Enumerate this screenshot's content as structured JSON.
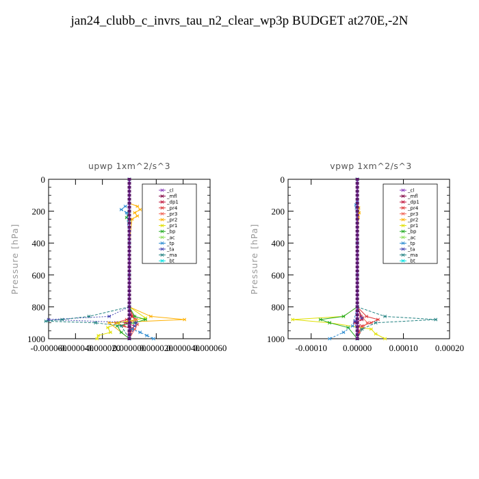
{
  "title": "jan24_clubb_c_invrs_tau_n2_clear_wp3p  BUDGET at270E,-2N",
  "legend_colors": {
    "_cl": "#8a3ab9",
    "_mfl": "#800040",
    "_dp1": "#c0143c",
    "_pr4": "#dd3a3a",
    "_pr3": "#f06050",
    "_pr2": "#ffb000",
    "_pr1": "#e0e000",
    "_bp": "#22aa22",
    "_ac": "#90e060",
    "_tp": "#2a8ad0",
    "_ta": "#4040b0",
    "_ma": "#208080",
    "_bt": "#00e0e0"
  },
  "chart_data": [
    {
      "type": "line",
      "title": "upwp   1xm^2/s^3",
      "ylabel": "Pressure [hPa]",
      "ylim": [
        1000,
        0
      ],
      "xlim": [
        -6e-05,
        6e-05
      ],
      "yticks": [
        "0",
        "200",
        "400",
        "600",
        "800",
        "1000"
      ],
      "xticks": [
        "-0.000060",
        "-0.000040",
        "-0.000020",
        "0.000000",
        "0.000020",
        "0.000040",
        "0.000060"
      ],
      "legend": [
        "_cl",
        "_mfl",
        "_dp1",
        "_pr4",
        "_pr3",
        "_pr2",
        "_pr1",
        "_bp",
        "_ac",
        "_tp",
        "_ta",
        "_ma",
        "_bt"
      ],
      "series": [
        {
          "name": "_cl",
          "y": [
            0,
            200,
            400,
            600,
            800,
            880,
            920,
            1000
          ],
          "x": [
            0,
            0,
            0,
            0,
            0,
            0,
            0,
            0
          ]
        },
        {
          "name": "_mfl",
          "y": [
            0,
            200,
            400,
            600,
            800,
            880,
            920,
            1000
          ],
          "x": [
            0,
            0,
            0,
            0,
            0,
            0,
            0,
            0
          ]
        },
        {
          "name": "_dp1",
          "y": [
            0,
            800,
            860,
            880,
            900,
            920,
            940,
            960,
            1000
          ],
          "x": [
            0,
            0,
            2e-06,
            5e-06,
            -3e-06,
            4e-06,
            1e-06,
            0,
            0
          ]
        },
        {
          "name": "_pr4",
          "y": [
            0,
            800,
            860,
            880,
            900,
            920,
            940,
            1000
          ],
          "x": [
            0,
            0,
            3e-06,
            -2e-06,
            -1e-05,
            -4e-06,
            2e-06,
            0
          ]
        },
        {
          "name": "_pr3",
          "y": [
            0,
            800,
            880,
            910,
            940,
            1000
          ],
          "x": [
            0,
            0,
            4e-06,
            6e-06,
            4e-06,
            0
          ]
        },
        {
          "name": "_pr2",
          "y": [
            0,
            150,
            170,
            190,
            210,
            230,
            250,
            400,
            800,
            860,
            880,
            900,
            1000
          ],
          "x": [
            0,
            0,
            6e-06,
            8e-06,
            4e-06,
            6e-06,
            2e-06,
            0,
            0,
            1.6e-05,
            4.1e-05,
            -1.5e-05,
            0
          ]
        },
        {
          "name": "_pr1",
          "y": [
            0,
            800,
            870,
            900,
            930,
            960,
            980,
            1000
          ],
          "x": [
            0,
            0,
            1.2e-05,
            -8e-06,
            -1.6e-05,
            -1.4e-05,
            -2.3e-05,
            -2.4e-05
          ]
        },
        {
          "name": "_bp",
          "y": [
            0,
            200,
            240,
            260,
            800,
            860,
            880,
            900,
            920,
            960,
            1000
          ],
          "x": [
            0,
            0,
            -2e-06,
            0,
            0,
            4e-06,
            1.2e-05,
            4e-06,
            -9e-06,
            -6e-06,
            0
          ]
        },
        {
          "name": "_ac",
          "y": [
            0,
            200,
            400,
            600,
            800,
            1000
          ],
          "x": [
            0,
            0,
            0,
            0,
            0,
            0
          ]
        },
        {
          "name": "_tp",
          "y": [
            0,
            150,
            170,
            190,
            210,
            400,
            800,
            900,
            940,
            960,
            980,
            1000
          ],
          "x": [
            0,
            0,
            -3e-06,
            -6e-06,
            -2e-06,
            0,
            0,
            0,
            2e-06,
            8e-06,
            1.3e-05,
            1.8e-05
          ]
        },
        {
          "name": "_ta",
          "y": [
            0,
            400,
            800,
            860,
            880,
            900,
            920,
            1000
          ],
          "x": [
            0,
            0,
            0,
            -1.5e-05,
            -6e-05,
            5e-06,
            4e-06,
            0
          ]
        },
        {
          "name": "_ma",
          "y": [
            0,
            800,
            860,
            880,
            890,
            900,
            920,
            1000
          ],
          "x": [
            0,
            0,
            -3e-05,
            -5e-05,
            -6.2e-05,
            -2.5e-05,
            -6e-06,
            0
          ]
        },
        {
          "name": "_bt",
          "y": [
            0,
            200,
            400,
            600,
            800,
            1000
          ],
          "x": [
            0,
            0,
            0,
            0,
            0,
            0
          ]
        }
      ]
    },
    {
      "type": "line",
      "title": "vpwp   1xm^2/s^3",
      "ylabel": "Pressure [hPa]",
      "ylim": [
        1000,
        0
      ],
      "xlim": [
        -0.00015,
        0.0002
      ],
      "yticks": [
        "0",
        "200",
        "400",
        "600",
        "800",
        "1000"
      ],
      "xticks": [
        "-0.00010",
        "0.00000",
        "0.00010",
        "0.00020"
      ],
      "xtick_values": [
        -0.0001,
        0.0,
        0.0001,
        0.0002
      ],
      "legend": [
        "_cl",
        "_mfl",
        "_dp1",
        "_pr4",
        "_pr3",
        "_pr2",
        "_pr1",
        "_bp",
        "_ac",
        "_tp",
        "_ta",
        "_ma",
        "_bt"
      ],
      "series": [
        {
          "name": "_cl",
          "y": [
            0,
            200,
            400,
            600,
            800,
            1000
          ],
          "x": [
            0,
            0,
            0,
            0,
            0,
            0
          ]
        },
        {
          "name": "_mfl",
          "y": [
            0,
            200,
            400,
            600,
            800,
            1000
          ],
          "x": [
            0,
            0,
            0,
            0,
            0,
            0
          ]
        },
        {
          "name": "_dp1",
          "y": [
            0,
            800,
            860,
            880,
            900,
            920,
            1000
          ],
          "x": [
            0,
            0,
            8e-06,
            1e-05,
            -5e-06,
            3e-06,
            0
          ]
        },
        {
          "name": "_pr4",
          "y": [
            0,
            800,
            860,
            880,
            900,
            920,
            960,
            1000
          ],
          "x": [
            0,
            0,
            2e-05,
            4.5e-05,
            3e-05,
            1e-05,
            3e-06,
            0
          ]
        },
        {
          "name": "_pr3",
          "y": [
            0,
            800,
            870,
            900,
            930,
            1000
          ],
          "x": [
            0,
            0,
            1.2e-05,
            2.2e-05,
            1.2e-05,
            0
          ]
        },
        {
          "name": "_pr2",
          "y": [
            0,
            150,
            180,
            210,
            240,
            400,
            800,
            1000
          ],
          "x": [
            0,
            0,
            3e-06,
            4e-06,
            2e-06,
            0,
            0,
            0
          ]
        },
        {
          "name": "_pr1",
          "y": [
            0,
            800,
            860,
            880,
            900,
            940,
            970,
            1000
          ],
          "x": [
            0,
            0,
            -3e-05,
            -0.00014,
            -6e-05,
            3e-05,
            4e-05,
            6e-05
          ]
        },
        {
          "name": "_bp",
          "y": [
            0,
            800,
            860,
            880,
            900,
            930,
            1000
          ],
          "x": [
            0,
            0,
            -3e-05,
            -8e-05,
            -6e-05,
            -2e-05,
            0
          ]
        },
        {
          "name": "_ac",
          "y": [
            0,
            200,
            400,
            600,
            800,
            1000
          ],
          "x": [
            0,
            0,
            0,
            0,
            0,
            0
          ]
        },
        {
          "name": "_tp",
          "y": [
            0,
            140,
            160,
            180,
            400,
            800,
            920,
            960,
            1000
          ],
          "x": [
            0,
            0,
            -3e-06,
            -2e-06,
            0,
            0,
            -1e-05,
            -3e-05,
            -6e-05
          ]
        },
        {
          "name": "_ta",
          "y": [
            0,
            400,
            800,
            870,
            890,
            1000
          ],
          "x": [
            0,
            0,
            0,
            1e-05,
            -5e-06,
            0
          ]
        },
        {
          "name": "_ma",
          "y": [
            0,
            800,
            860,
            880,
            900,
            940,
            1000
          ],
          "x": [
            0,
            0,
            6e-05,
            0.00017,
            4e-05,
            1e-05,
            0
          ]
        },
        {
          "name": "_bt",
          "y": [
            0,
            200,
            400,
            600,
            800,
            1000
          ],
          "x": [
            0,
            0,
            0,
            0,
            0,
            0
          ]
        }
      ]
    }
  ]
}
